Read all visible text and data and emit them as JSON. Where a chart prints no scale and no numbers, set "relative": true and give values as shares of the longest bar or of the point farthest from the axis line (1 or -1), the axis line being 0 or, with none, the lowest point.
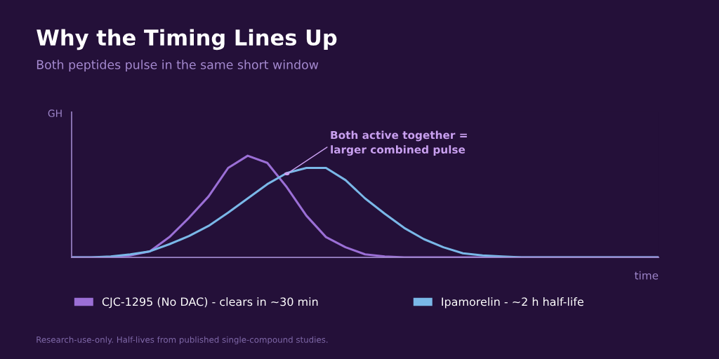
{
  "chart_data": {
    "type": "line",
    "title": "Why the Timing Lines Up",
    "subtitle": "Both peptides pulse in the same short window",
    "xlabel": "time",
    "ylabel": "GH",
    "relative": true,
    "legend": "bottom",
    "grid": false,
    "marker": "none",
    "line_style": "solid",
    "categories": [
      null,
      null,
      null,
      null,
      null,
      null,
      null,
      null,
      null,
      null,
      null,
      null,
      null,
      null,
      null,
      null,
      null,
      null,
      null,
      null,
      null,
      null,
      null,
      null,
      null,
      null,
      null,
      null,
      null,
      null,
      null
    ],
    "series": [
      {
        "name": "CJC-1295 (No DAC) - clears in ~30 min",
        "color": "#9b6fd6",
        "values": [
          0,
          0,
          0,
          0.02,
          0.06,
          0.2,
          0.39,
          0.6,
          0.88,
          1,
          0.93,
          0.69,
          0.41,
          0.2,
          0.1,
          0.03,
          0.01,
          0,
          0,
          0,
          0,
          0,
          0,
          0,
          0,
          0,
          0,
          0,
          0,
          0,
          0
        ]
      },
      {
        "name": "Ipamorelin - ~2 h half-life",
        "color": "#7ab8e8",
        "values": [
          0,
          0,
          0.01,
          0.03,
          0.06,
          0.13,
          0.21,
          0.31,
          0.44,
          0.58,
          0.72,
          0.83,
          0.88,
          0.88,
          0.76,
          0.58,
          0.43,
          0.29,
          0.18,
          0.1,
          0.04,
          0.02,
          0.01,
          0,
          0,
          0,
          0,
          0,
          0,
          0,
          0
        ]
      }
    ],
    "annotations": [
      "Both active together =\nlarger combined pulse",
      "Research-use-only. Half-lives from published single-compound studies."
    ]
  }
}
